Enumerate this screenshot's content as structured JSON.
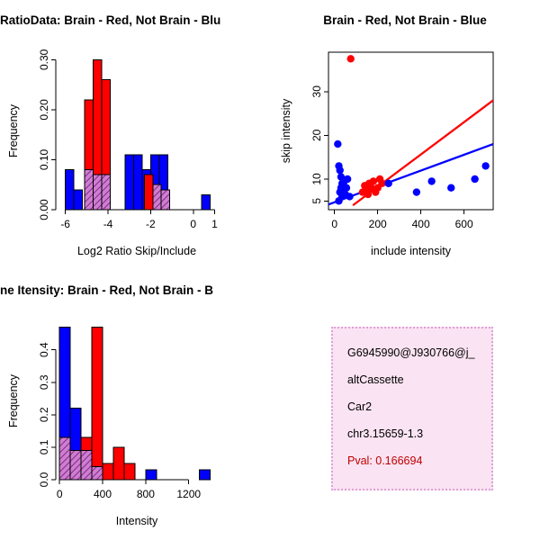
{
  "colors": {
    "red": "#ff0000",
    "blue": "#0000ff",
    "overlap_base": "#cf7ecf",
    "overlap_line": "#7d2a8d"
  },
  "info_box": {
    "bg": "#fae3f2",
    "border": "#e0a0d6",
    "pval_color": "#c00000",
    "lines": [
      "G6945990@J930766@j_",
      "altCassette",
      "Car2",
      "chr3.15659-1.3"
    ],
    "pval": "Pval: 0.166694"
  },
  "chart_data": [
    {
      "id": "log2-ratio-histogram",
      "type": "bar",
      "title": "RatioData: Brain - Red, Not Brain - Blu",
      "xlabel": "Log2 Ratio Skip/Include",
      "ylabel": "Frequency",
      "xlim": [
        -6.45,
        1.15
      ],
      "ylim": [
        0,
        0.315
      ],
      "xticks": [
        -6,
        -4,
        -2,
        0,
        1
      ],
      "yticks": [
        0,
        0.1,
        0.2,
        0.3
      ],
      "ytick_labels": [
        "0.00",
        "0.10",
        "0.20",
        "0.30"
      ],
      "bars": [
        {
          "x0": -6.0,
          "x1": -5.6,
          "h": 0.08,
          "c": "blue"
        },
        {
          "x0": -5.6,
          "x1": -5.2,
          "h": 0.04,
          "c": "blue"
        },
        {
          "x0": -3.2,
          "x1": -2.8,
          "h": 0.11,
          "c": "blue"
        },
        {
          "x0": -2.8,
          "x1": -2.4,
          "h": 0.11,
          "c": "blue"
        },
        {
          "x0": -2.4,
          "x1": -2.0,
          "h": 0.08,
          "c": "blue"
        },
        {
          "x0": -2.0,
          "x1": -1.6,
          "h": 0.11,
          "c": "blue"
        },
        {
          "x0": -1.6,
          "x1": -1.2,
          "h": 0.11,
          "c": "blue"
        },
        {
          "x0": 0.4,
          "x1": 0.8,
          "h": 0.03,
          "c": "blue"
        },
        {
          "x0": -5.1,
          "x1": -4.7,
          "h": 0.22,
          "c": "red"
        },
        {
          "x0": -4.7,
          "x1": -4.3,
          "h": 0.3,
          "c": "red"
        },
        {
          "x0": -4.3,
          "x1": -3.9,
          "h": 0.26,
          "c": "red"
        },
        {
          "x0": -2.3,
          "x1": -1.9,
          "h": 0.07,
          "c": "red"
        },
        {
          "x0": -5.1,
          "x1": -4.7,
          "h": 0.08,
          "c": "overlap"
        },
        {
          "x0": -4.7,
          "x1": -4.3,
          "h": 0.07,
          "c": "overlap"
        },
        {
          "x0": -4.3,
          "x1": -3.9,
          "h": 0.07,
          "c": "overlap"
        },
        {
          "x0": -1.9,
          "x1": -1.5,
          "h": 0.05,
          "c": "overlap"
        },
        {
          "x0": -1.5,
          "x1": -1.1,
          "h": 0.04,
          "c": "overlap"
        }
      ]
    },
    {
      "id": "intensity-scatter",
      "type": "scatter",
      "title": "Brain - Red, Not Brain - Blue",
      "xlabel": "include intensity",
      "ylabel": "skip intensity",
      "xlim": [
        -28,
        735
      ],
      "ylim": [
        3,
        39
      ],
      "xticks": [
        0,
        200,
        400,
        600
      ],
      "yticks": [
        5,
        10,
        20,
        30
      ],
      "series": [
        {
          "name": "Brain",
          "color": "red",
          "points": [
            [
              75,
              37.5
            ],
            [
              130,
              7
            ],
            [
              140,
              8.5
            ],
            [
              150,
              7.5
            ],
            [
              155,
              6.5
            ],
            [
              160,
              9
            ],
            [
              170,
              8
            ],
            [
              180,
              9.5
            ],
            [
              190,
              7
            ],
            [
              200,
              8
            ],
            [
              210,
              10
            ],
            [
              220,
              9
            ]
          ]
        },
        {
          "name": "Not Brain",
          "color": "blue",
          "points": [
            [
              15,
              18
            ],
            [
              20,
              13
            ],
            [
              25,
              12
            ],
            [
              30,
              10.5
            ],
            [
              35,
              9
            ],
            [
              30,
              8
            ],
            [
              25,
              7
            ],
            [
              40,
              7.5
            ],
            [
              35,
              6
            ],
            [
              50,
              6.5
            ],
            [
              45,
              9.5
            ],
            [
              55,
              8
            ],
            [
              20,
              5
            ],
            [
              60,
              10
            ],
            [
              70,
              6
            ],
            [
              250,
              9
            ],
            [
              380,
              7
            ],
            [
              450,
              9.5
            ],
            [
              540,
              8
            ],
            [
              650,
              10
            ],
            [
              700,
              13
            ]
          ]
        }
      ],
      "lines": [
        {
          "name": "Brain fit",
          "color": "red",
          "x1": 85,
          "y1": 4,
          "x2": 735,
          "y2": 28
        },
        {
          "name": "Not Brain fit",
          "color": "blue",
          "x1": -28,
          "y1": 4.2,
          "x2": 735,
          "y2": 18
        }
      ]
    },
    {
      "id": "gene-intensity-histogram",
      "type": "bar",
      "title": "ne Itensity: Brain - Red, Not Brain - B",
      "xlabel": "Intensity",
      "ylabel": "Frequency",
      "xlim": [
        -35,
        1470
      ],
      "ylim": [
        0,
        0.485
      ],
      "xticks": [
        0,
        400,
        800,
        1200
      ],
      "yticks": [
        0,
        0.1,
        0.2,
        0.3,
        0.4
      ],
      "ytick_labels": [
        "0.0",
        "0.1",
        "0.2",
        "0.3",
        "0.4"
      ],
      "bars": [
        {
          "x0": 0,
          "x1": 100,
          "h": 0.47,
          "c": "blue"
        },
        {
          "x0": 100,
          "x1": 200,
          "h": 0.22,
          "c": "blue"
        },
        {
          "x0": 800,
          "x1": 900,
          "h": 0.03,
          "c": "blue"
        },
        {
          "x0": 1300,
          "x1": 1400,
          "h": 0.03,
          "c": "blue"
        },
        {
          "x0": 200,
          "x1": 300,
          "h": 0.13,
          "c": "red"
        },
        {
          "x0": 300,
          "x1": 400,
          "h": 0.47,
          "c": "red"
        },
        {
          "x0": 400,
          "x1": 500,
          "h": 0.05,
          "c": "red"
        },
        {
          "x0": 500,
          "x1": 600,
          "h": 0.1,
          "c": "red"
        },
        {
          "x0": 600,
          "x1": 700,
          "h": 0.05,
          "c": "red"
        },
        {
          "x0": 0,
          "x1": 100,
          "h": 0.13,
          "c": "overlap"
        },
        {
          "x0": 100,
          "x1": 200,
          "h": 0.09,
          "c": "overlap"
        },
        {
          "x0": 200,
          "x1": 300,
          "h": 0.09,
          "c": "overlap"
        },
        {
          "x0": 300,
          "x1": 400,
          "h": 0.04,
          "c": "overlap"
        }
      ]
    }
  ]
}
